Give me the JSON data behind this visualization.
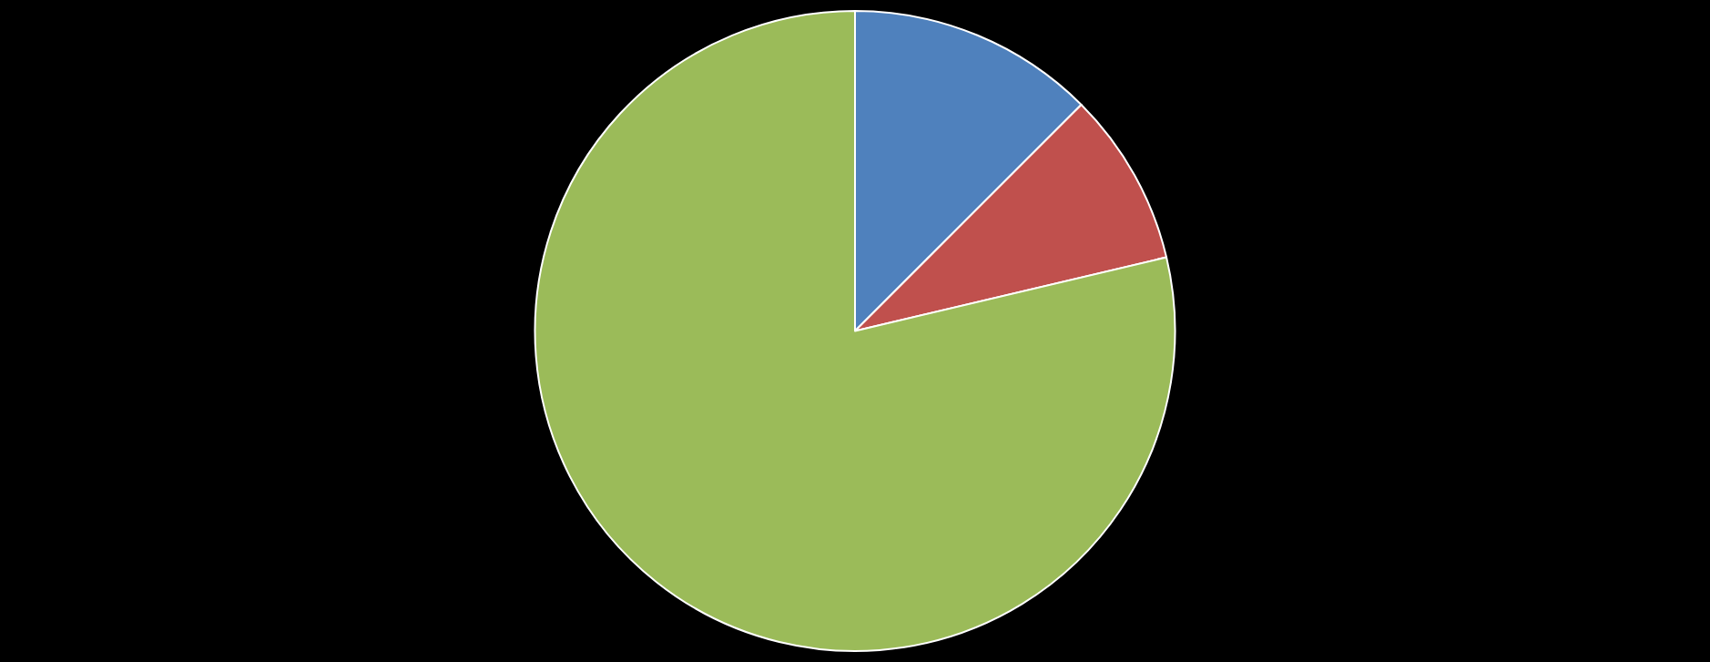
{
  "chart_data": {
    "type": "pie",
    "categories": [
      null,
      null,
      null
    ],
    "values": [
      12.5,
      8.8,
      78.7
    ],
    "colors": [
      "#4f81bd",
      "#c0504d",
      "#9bbb59"
    ]
  }
}
